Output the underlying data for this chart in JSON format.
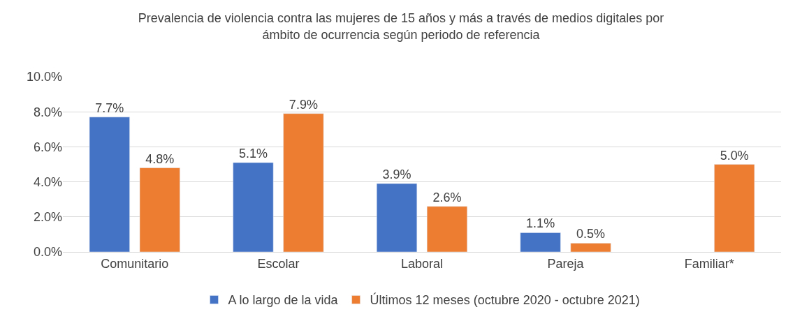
{
  "chart_data": {
    "type": "bar",
    "title": "Prevalencia de violencia contra las mujeres de 15 años y más a través de medios digitales por ámbito de ocurrencia según periodo de referencia",
    "categories": [
      "Comunitario",
      "Escolar",
      "Laboral",
      "Pareja",
      "Familiar*"
    ],
    "series": [
      {
        "name": "A lo largo de la vida",
        "color": "#4472c4",
        "values": [
          7.7,
          5.1,
          3.9,
          1.1,
          null
        ],
        "value_labels": [
          "7.7%",
          "5.1%",
          "3.9%",
          "1.1%",
          null
        ]
      },
      {
        "name": "Últimos 12 meses (octubre 2020 - octubre 2021)",
        "color": "#ed7d31",
        "values": [
          4.8,
          7.9,
          2.6,
          0.5,
          5.0
        ],
        "value_labels": [
          "4.8%",
          "7.9%",
          "2.6%",
          "0.5%",
          "5.0%"
        ]
      }
    ],
    "ylim": [
      0,
      10
    ],
    "yticks": [
      {
        "value": 0,
        "label": "0.0%"
      },
      {
        "value": 2,
        "label": "2.0%"
      },
      {
        "value": 4,
        "label": "4.0%"
      },
      {
        "value": 6,
        "label": "6.0%"
      },
      {
        "value": 8,
        "label": "8.0%"
      },
      {
        "value": 10,
        "label": "10.0%"
      }
    ],
    "grid": "y",
    "legend": "bottom"
  }
}
